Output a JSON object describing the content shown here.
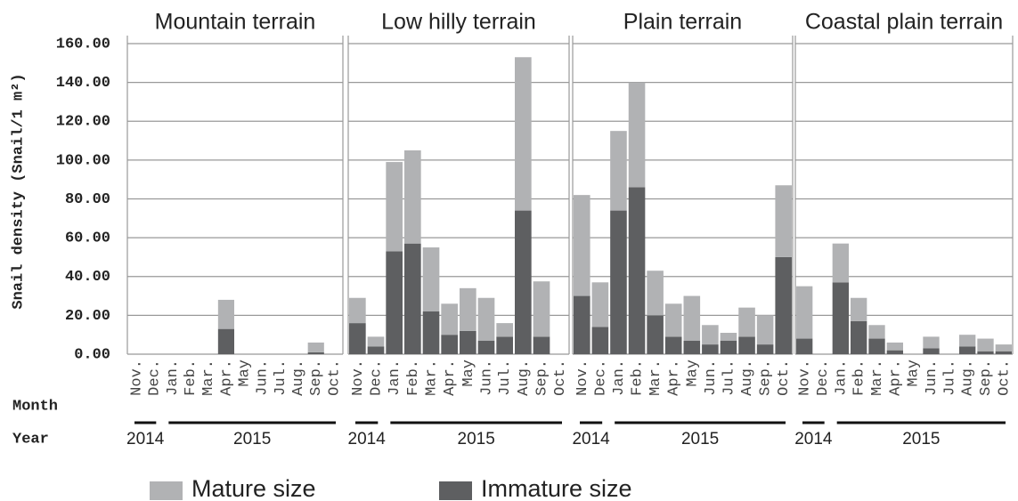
{
  "chart_data": {
    "type": "bar",
    "stacked": true,
    "ylabel": "Snail density (Snail/1 m²)",
    "ylim": [
      0,
      160
    ],
    "yticks": [
      {
        "value": 0,
        "label": "0.00"
      },
      {
        "value": 20,
        "label": "20.00"
      },
      {
        "value": 40,
        "label": "40.00"
      },
      {
        "value": 60,
        "label": "60.00"
      },
      {
        "value": 80,
        "label": "80.00"
      },
      {
        "value": 100,
        "label": "100.00"
      },
      {
        "value": 120,
        "label": "120.00"
      },
      {
        "value": 140,
        "label": "140.00"
      },
      {
        "value": 160,
        "label": "160.00"
      }
    ],
    "grid": true,
    "categories": [
      "Nov.",
      "Dec.",
      "Jan.",
      "Feb.",
      "Mar.",
      "Apr.",
      "May",
      "Jun.",
      "Jul.",
      "Aug.",
      "Sep.",
      "Oct."
    ],
    "row_labels": [
      "Month",
      "Year"
    ],
    "series": [
      {
        "name": "Mature size",
        "color": "#b1b2b4"
      },
      {
        "name": "Immature size",
        "color": "#5e5f61"
      }
    ],
    "panels": [
      {
        "title": "Mountain terrain",
        "years": [
          "2014",
          "2015"
        ],
        "series": [
          {
            "values": [
              0,
              0,
              0,
              0,
              0,
              15,
              0,
              0,
              0,
              0,
              5,
              0
            ]
          },
          {
            "values": [
              0,
              0,
              0,
              0,
              0,
              13,
              0,
              0,
              0,
              0,
              1,
              0
            ]
          }
        ]
      },
      {
        "title": "Low hilly terrain",
        "years": [
          "2014",
          "2015"
        ],
        "series": [
          {
            "values": [
              13,
              5,
              46,
              48,
              33,
              16,
              22,
              22,
              7,
              79,
              28.5,
              0
            ]
          },
          {
            "values": [
              16,
              4,
              53,
              57,
              22,
              10,
              12,
              7,
              9,
              74,
              9,
              0
            ]
          }
        ]
      },
      {
        "title": "Plain terrain",
        "years": [
          "2014",
          "2015"
        ],
        "series": [
          {
            "values": [
              52,
              23,
              41,
              54,
              23,
              17,
              23,
              10,
              4,
              15,
              15,
              37
            ]
          },
          {
            "values": [
              30,
              14,
              74,
              86,
              20,
              9,
              7,
              5,
              7,
              9,
              5,
              50
            ]
          }
        ]
      },
      {
        "title": "Coastal plain terrain",
        "years": [
          "2014",
          "2015"
        ],
        "series": [
          {
            "values": [
              27,
              0,
              20,
              12,
              7,
              4,
              0,
              6,
              0,
              6,
              6.5,
              3.5
            ]
          },
          {
            "values": [
              8,
              0,
              37,
              17,
              8,
              2,
              0,
              3,
              0,
              4,
              1.5,
              1.5
            ]
          }
        ]
      }
    ]
  }
}
